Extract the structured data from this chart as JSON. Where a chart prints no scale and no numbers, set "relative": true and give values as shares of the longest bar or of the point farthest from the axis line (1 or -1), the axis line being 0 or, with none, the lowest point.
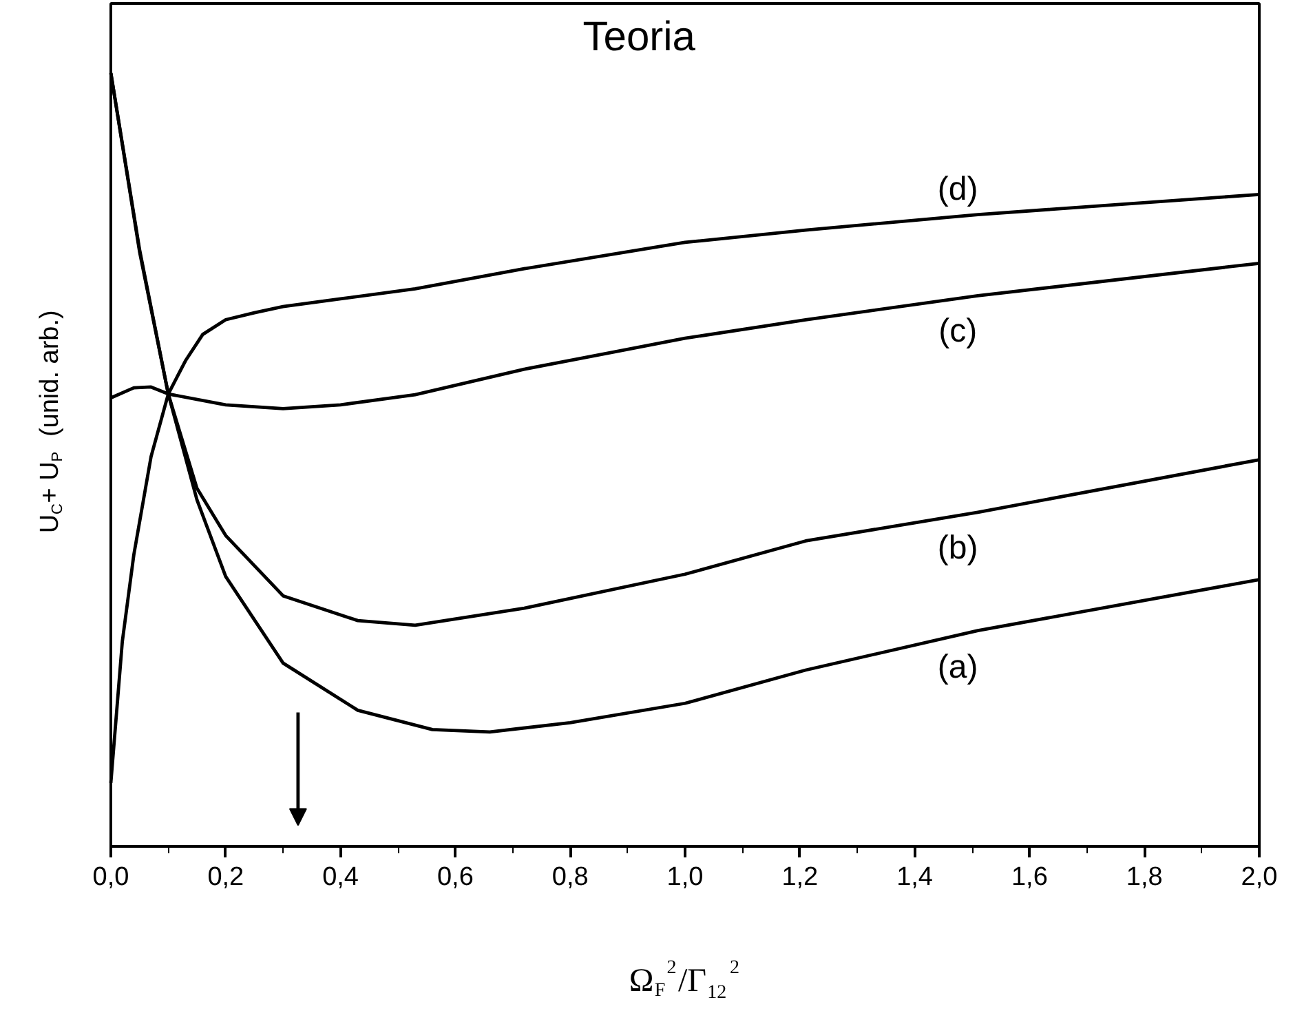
{
  "chart_data": {
    "type": "line",
    "title": "Teoria",
    "xlabel": "Ω$_{F}$$^{2}$/Γ$_{12}$$^{2}$",
    "ylabel": "U$_{C}$+ U$_{P}$  (unid. arb.)",
    "relative": true,
    "xlim": [
      0,
      2.0
    ],
    "xticks": [
      {
        "value": 0,
        "label": "0,0"
      },
      {
        "value": 0.2,
        "label": "0,2"
      },
      {
        "value": 0.4,
        "label": "0,4"
      },
      {
        "value": 0.6,
        "label": "0,6"
      },
      {
        "value": 0.8,
        "label": "0,8"
      },
      {
        "value": 1.0,
        "label": "1,0"
      },
      {
        "value": 1.2,
        "label": "1,2"
      },
      {
        "value": 1.4,
        "label": "1,4"
      },
      {
        "value": 1.6,
        "label": "1,6"
      },
      {
        "value": 1.8,
        "label": "1,8"
      },
      {
        "value": 2.0,
        "label": "2,0"
      }
    ],
    "grid": false,
    "legend": false,
    "marker": "none",
    "line_style": "solid",
    "series": [
      {
        "name": "(a)",
        "color": "#000000",
        "x": [
          0,
          0.05,
          0.1,
          0.15,
          0.2,
          0.3,
          0.43,
          0.56,
          0.66,
          0.8,
          1.0,
          1.21,
          1.51,
          2.0
        ],
        "values": [
          1.0,
          0.772,
          0.585,
          0.448,
          0.349,
          0.237,
          0.176,
          0.151,
          0.148,
          0.16,
          0.185,
          0.228,
          0.279,
          0.345
        ]
      },
      {
        "name": "(b)",
        "color": "#000000",
        "x": [
          0,
          0.05,
          0.1,
          0.15,
          0.2,
          0.3,
          0.43,
          0.53,
          0.72,
          1.0,
          1.21,
          1.51,
          2.0
        ],
        "values": [
          1.0,
          0.769,
          0.585,
          0.463,
          0.402,
          0.324,
          0.292,
          0.286,
          0.308,
          0.352,
          0.395,
          0.432,
          0.5
        ]
      },
      {
        "name": "(c)",
        "color": "#000000",
        "x": [
          0,
          0.04,
          0.07,
          0.1,
          0.2,
          0.3,
          0.4,
          0.53,
          0.72,
          1.0,
          1.21,
          1.51,
          2.0
        ],
        "values": [
          0.58,
          0.593,
          0.594,
          0.585,
          0.571,
          0.566,
          0.571,
          0.584,
          0.617,
          0.657,
          0.681,
          0.712,
          0.754
        ]
      },
      {
        "name": "(d)",
        "color": "#000000",
        "x": [
          0,
          0.02,
          0.04,
          0.07,
          0.1,
          0.13,
          0.16,
          0.2,
          0.25,
          0.3,
          0.4,
          0.53,
          0.72,
          1.0,
          1.21,
          1.51,
          2.0
        ],
        "values": [
          0.082,
          0.265,
          0.377,
          0.504,
          0.585,
          0.628,
          0.662,
          0.681,
          0.69,
          0.698,
          0.708,
          0.721,
          0.747,
          0.781,
          0.797,
          0.817,
          0.843
        ]
      }
    ]
  }
}
